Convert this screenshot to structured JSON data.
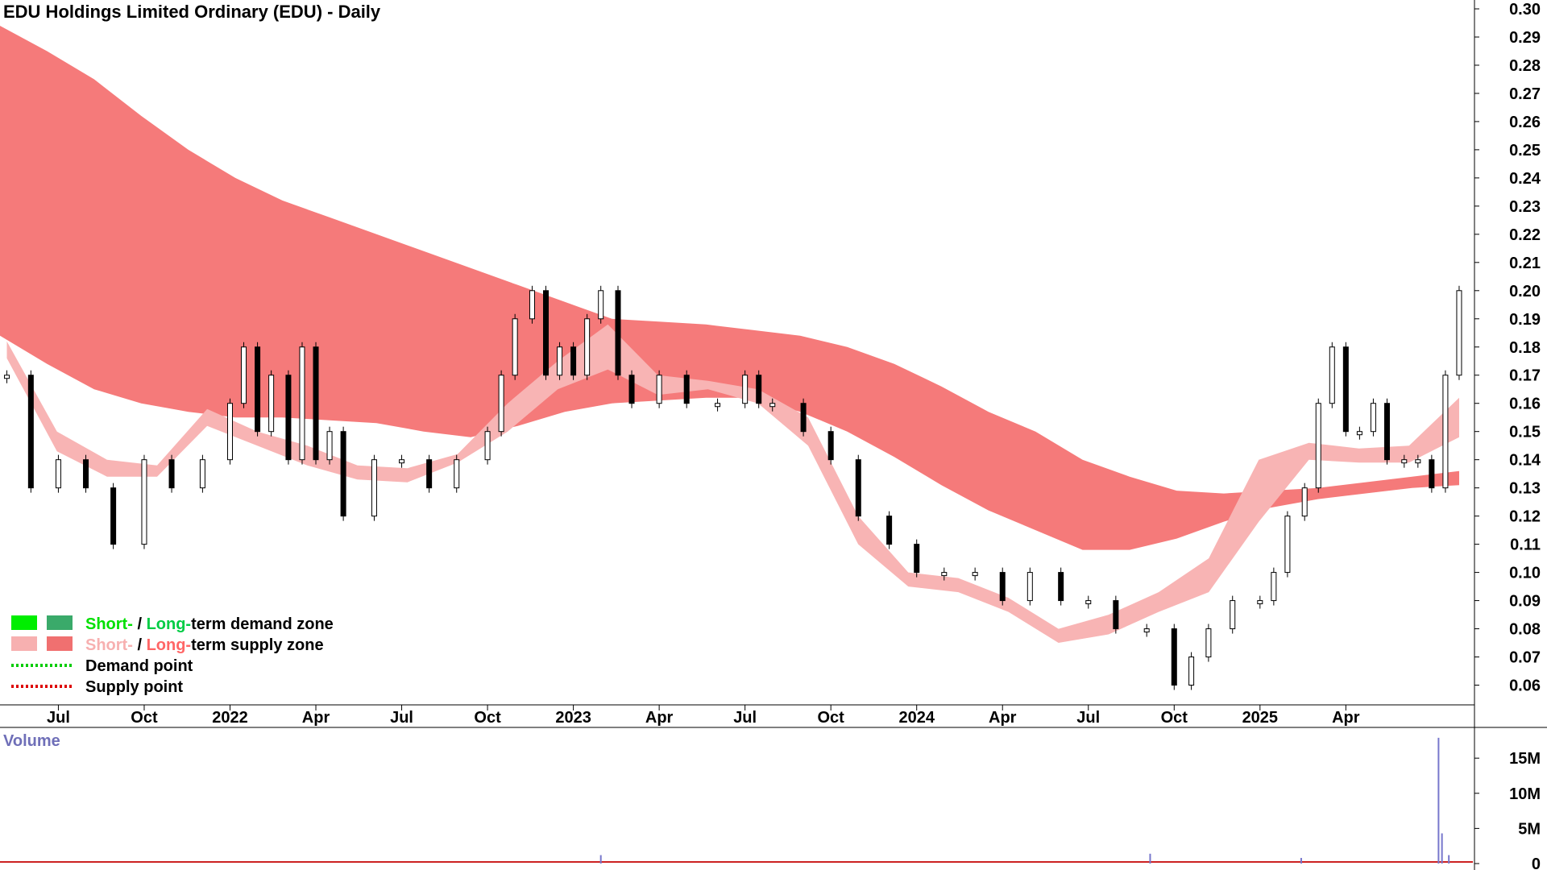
{
  "chart_data": {
    "type": "candlestick",
    "title": "EDU Holdings Limited Ordinary (EDU) - Daily",
    "price_axis": {
      "ticks": [
        "0.30",
        "0.29",
        "0.28",
        "0.27",
        "0.26",
        "0.25",
        "0.24",
        "0.23",
        "0.22",
        "0.21",
        "0.20",
        "0.19",
        "0.18",
        "0.17",
        "0.16",
        "0.15",
        "0.14",
        "0.13",
        "0.12",
        "0.11",
        "0.10",
        "0.09",
        "0.08",
        "0.07",
        "0.06"
      ],
      "range": [
        0.055,
        0.302
      ]
    },
    "time_axis": {
      "labels": [
        "Jul",
        "Oct",
        "2022",
        "Apr",
        "Jul",
        "Oct",
        "2023",
        "Apr",
        "Jul",
        "Oct",
        "2024",
        "Apr",
        "Jul",
        "Oct",
        "2025",
        "Apr"
      ],
      "label_months": [
        2021.5,
        2021.75,
        2022.0,
        2022.25,
        2022.5,
        2022.75,
        2023.0,
        2023.25,
        2023.5,
        2023.75,
        2024.0,
        2024.25,
        2024.5,
        2024.75,
        2025.0,
        2025.25
      ],
      "range": [
        2021.33,
        2025.62
      ]
    },
    "price_series": {
      "t": [
        2021.35,
        2021.42,
        2021.5,
        2021.58,
        2021.66,
        2021.75,
        2021.83,
        2021.92,
        2022.0,
        2022.04,
        2022.08,
        2022.12,
        2022.17,
        2022.21,
        2022.25,
        2022.29,
        2022.33,
        2022.42,
        2022.5,
        2022.58,
        2022.66,
        2022.75,
        2022.79,
        2022.83,
        2022.88,
        2022.92,
        2022.96,
        2023.0,
        2023.04,
        2023.08,
        2023.13,
        2023.17,
        2023.25,
        2023.33,
        2023.42,
        2023.5,
        2023.54,
        2023.58,
        2023.67,
        2023.75,
        2023.83,
        2023.92,
        2024.0,
        2024.08,
        2024.17,
        2024.25,
        2024.33,
        2024.42,
        2024.5,
        2024.58,
        2024.67,
        2024.75,
        2024.8,
        2024.85,
        2024.92,
        2025.0,
        2025.04,
        2025.08,
        2025.13,
        2025.17,
        2025.21,
        2025.25,
        2025.29,
        2025.33,
        2025.37,
        2025.42,
        2025.46,
        2025.5,
        2025.54,
        2025.58
      ],
      "close": [
        0.17,
        0.13,
        0.14,
        0.13,
        0.11,
        0.14,
        0.13,
        0.14,
        0.16,
        0.18,
        0.15,
        0.17,
        0.14,
        0.18,
        0.14,
        0.15,
        0.12,
        0.14,
        0.14,
        0.13,
        0.14,
        0.15,
        0.17,
        0.19,
        0.2,
        0.17,
        0.18,
        0.17,
        0.19,
        0.2,
        0.17,
        0.16,
        0.17,
        0.16,
        0.16,
        0.17,
        0.16,
        0.16,
        0.15,
        0.14,
        0.12,
        0.11,
        0.1,
        0.1,
        0.1,
        0.09,
        0.1,
        0.09,
        0.09,
        0.08,
        0.08,
        0.06,
        0.07,
        0.08,
        0.09,
        0.09,
        0.1,
        0.12,
        0.13,
        0.16,
        0.18,
        0.15,
        0.15,
        0.16,
        0.14,
        0.14,
        0.14,
        0.13,
        0.17,
        0.2
      ]
    },
    "zones": {
      "long_term_upper": [
        0.294,
        0.285,
        0.275,
        0.262,
        0.25,
        0.24,
        0.232,
        0.226,
        0.22,
        0.214,
        0.208,
        0.202,
        0.196,
        0.19,
        0.189,
        0.188,
        0.186,
        0.184,
        0.18,
        0.174,
        0.166,
        0.157,
        0.15,
        0.14,
        0.134,
        0.129,
        0.128,
        0.129,
        0.13,
        0.132,
        0.134,
        0.136
      ],
      "long_term_lower": [
        0.184,
        0.174,
        0.165,
        0.16,
        0.157,
        0.155,
        0.155,
        0.154,
        0.153,
        0.15,
        0.148,
        0.152,
        0.157,
        0.16,
        0.161,
        0.162,
        0.162,
        0.157,
        0.15,
        0.141,
        0.131,
        0.122,
        0.115,
        0.108,
        0.108,
        0.112,
        0.118,
        0.123,
        0.126,
        0.128,
        0.13,
        0.131
      ],
      "short_term_upper": [
        0.182,
        0.15,
        0.14,
        0.138,
        0.158,
        0.15,
        0.145,
        0.138,
        0.137,
        0.142,
        0.16,
        0.175,
        0.188,
        0.17,
        0.168,
        0.165,
        0.155,
        0.12,
        0.1,
        0.098,
        0.091,
        0.08,
        0.085,
        0.093,
        0.105,
        0.14,
        0.146,
        0.144,
        0.145,
        0.162
      ],
      "short_term_lower": [
        0.176,
        0.143,
        0.134,
        0.134,
        0.152,
        0.145,
        0.138,
        0.133,
        0.132,
        0.139,
        0.15,
        0.165,
        0.172,
        0.163,
        0.165,
        0.16,
        0.145,
        0.11,
        0.095,
        0.093,
        0.086,
        0.075,
        0.078,
        0.086,
        0.093,
        0.118,
        0.14,
        0.139,
        0.139,
        0.148
      ]
    },
    "volume": {
      "title": "Volume",
      "ticks": [
        "15M",
        "10M",
        "5M",
        "0"
      ],
      "range": [
        0,
        18000000
      ],
      "spikes": [
        {
          "t": 2025.52,
          "value": 17900000
        },
        {
          "t": 2025.53,
          "value": 4300000
        },
        {
          "t": 2025.55,
          "value": 1200000
        },
        {
          "t": 2024.68,
          "value": 1400000
        },
        {
          "t": 2023.08,
          "value": 1200000
        },
        {
          "t": 2025.12,
          "value": 800000
        }
      ]
    },
    "legend": {
      "position": "bottom-left",
      "items": [
        {
          "parts": [
            {
              "text": "Short-",
              "color": "#00e000"
            },
            {
              "text": " / ",
              "color": "#000000"
            },
            {
              "text": "Long-",
              "color": "#00cc44"
            },
            {
              "text": "term demand zone",
              "color": "#000000"
            }
          ],
          "swatch1": "#00ee00",
          "swatch2": "#3aaa6a",
          "type": "box"
        },
        {
          "parts": [
            {
              "text": "Short-",
              "color": "#f7b0b0"
            },
            {
              "text": " / ",
              "color": "#000000"
            },
            {
              "text": "Long-",
              "color": "#ff6666"
            },
            {
              "text": "term supply zone",
              "color": "#000000"
            }
          ],
          "swatch1": "#f7b0b0",
          "swatch2": "#f07070",
          "type": "box"
        },
        {
          "parts": [
            {
              "text": "Demand point",
              "color": "#000000"
            }
          ],
          "swatch1": "#00cc00",
          "type": "dots"
        },
        {
          "parts": [
            {
              "text": "Supply point",
              "color": "#000000"
            }
          ],
          "swatch1": "#dd0000",
          "type": "dots"
        }
      ]
    },
    "colors": {
      "long_supply": "#f57a7a",
      "long_demand_orange": "#f26a2a",
      "short_supply": "#f8b4b4",
      "short_demand": "#22dd22",
      "candle_up": "#ffffff",
      "candle_down": "#000000",
      "volume_line": "#cc2222",
      "volume_bar": "#7777cc"
    }
  }
}
